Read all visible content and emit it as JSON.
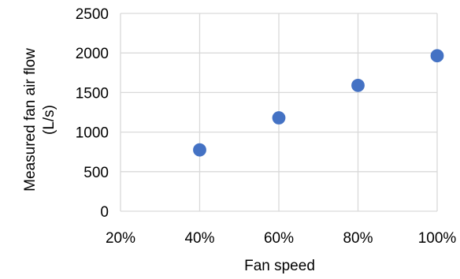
{
  "chart_data": {
    "type": "scatter",
    "title": "",
    "xlabel": "Fan speed",
    "ylabel_lines": [
      "Measured fan air flow",
      "(L/s)"
    ],
    "x": [
      0.4,
      0.6,
      0.8,
      1.0
    ],
    "y": [
      775,
      1180,
      1590,
      1965
    ],
    "xlim": [
      0.2,
      1.0
    ],
    "ylim": [
      0,
      2500
    ],
    "xticks": [
      0.2,
      0.4,
      0.6,
      0.8,
      1.0
    ],
    "xtick_labels": [
      "20%",
      "40%",
      "60%",
      "80%",
      "100%"
    ],
    "yticks": [
      0,
      500,
      1000,
      1500,
      2000,
      2500
    ],
    "ytick_labels": [
      "0",
      "500",
      "1000",
      "1500",
      "2000",
      "2500"
    ],
    "grid": true,
    "legend": "none",
    "marker_color": "#4472c4",
    "grid_color": "#d9d9d9"
  }
}
